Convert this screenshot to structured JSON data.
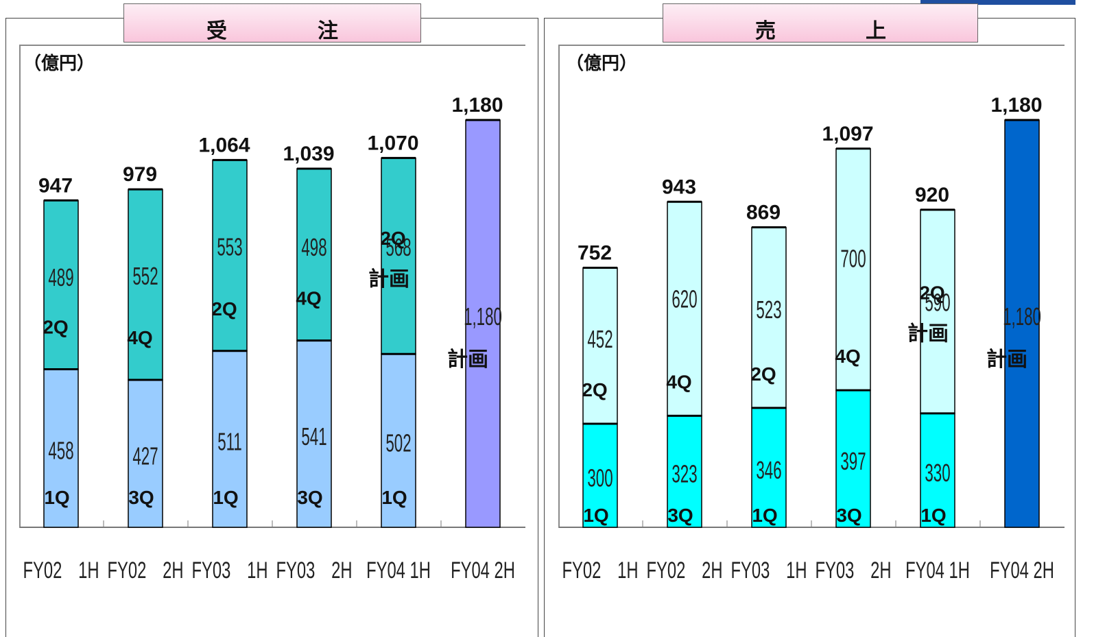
{
  "chart_data": [
    {
      "type": "bar",
      "title": "受　　　注",
      "unit": "（億円）",
      "categories": [
        "FY02　1H",
        "FY02　2H",
        "FY03　1H",
        "FY03　2H",
        "FY04 1H",
        "FY04 2H"
      ],
      "totals": [
        "947",
        "979",
        "1,064",
        "1,039",
        "1,070",
        "1,180"
      ],
      "bars": [
        {
          "bottom": 458,
          "top": 489,
          "bottom_label": "1Q",
          "top_label": "2Q"
        },
        {
          "bottom": 427,
          "top": 552,
          "bottom_label": "3Q",
          "top_label": "4Q"
        },
        {
          "bottom": 511,
          "top": 553,
          "bottom_label": "1Q",
          "top_label": "2Q"
        },
        {
          "bottom": 541,
          "top": 498,
          "bottom_label": "3Q",
          "top_label": "4Q"
        },
        {
          "bottom": 502,
          "top": 568,
          "bottom_label": "1Q",
          "top_label": "2Q",
          "top_note": "計画"
        },
        {
          "single": 1180,
          "single_label": "1,180",
          "note": "計画"
        }
      ],
      "colors": {
        "bottom": "#99ccff",
        "top": "#33cccc",
        "plan": "#9999ff"
      },
      "ylim": [
        0,
        1300
      ]
    },
    {
      "type": "bar",
      "title": "売　　　上",
      "unit": "（億円）",
      "categories": [
        "FY02　1H",
        "FY02　2H",
        "FY03　1H",
        "FY03　2H",
        "FY04 1H",
        "FY04 2H"
      ],
      "totals": [
        "752",
        "943",
        "869",
        "1,097",
        "920",
        "1,180"
      ],
      "bars": [
        {
          "bottom": 300,
          "top": 452,
          "bottom_label": "1Q",
          "top_label": "2Q"
        },
        {
          "bottom": 323,
          "top": 620,
          "bottom_label": "3Q",
          "top_label": "4Q"
        },
        {
          "bottom": 346,
          "top": 523,
          "bottom_label": "1Q",
          "top_label": "2Q"
        },
        {
          "bottom": 397,
          "top": 700,
          "bottom_label": "3Q",
          "top_label": "4Q"
        },
        {
          "bottom": 330,
          "top": 590,
          "bottom_label": "1Q",
          "top_label": "2Q",
          "top_note": "計画"
        },
        {
          "single": 1180,
          "single_label": "1,180",
          "note": "計画"
        }
      ],
      "colors": {
        "bottom": "#00ffff",
        "top": "#ccffff",
        "plan": "#0066cc"
      },
      "ylim": [
        0,
        1300
      ]
    }
  ]
}
